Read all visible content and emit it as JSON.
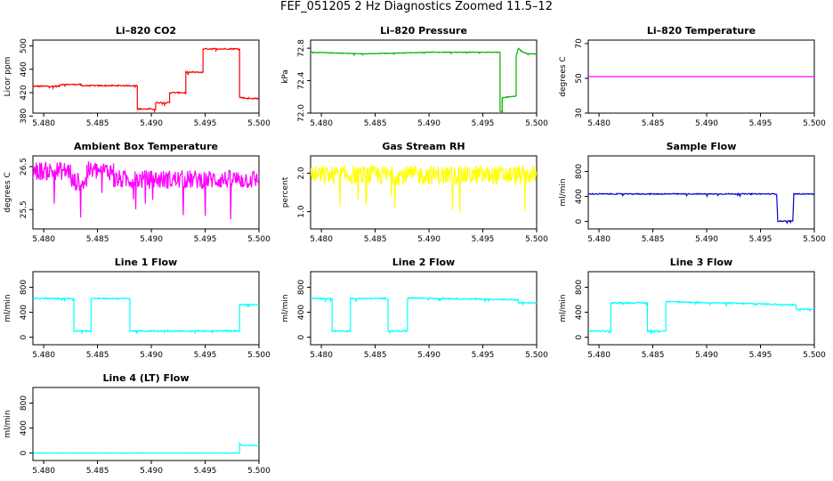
{
  "figure": {
    "title": "FEF_051205  2 Hz Diagnostics Zoomed 11.5–12"
  },
  "chart_data": [
    {
      "type": "line",
      "title": "Li–820 CO2",
      "xlabel": "",
      "ylabel": "Licor ppm",
      "xlim": [
        5.479,
        5.5
      ],
      "ylim": [
        385,
        510
      ],
      "xticks": [
        5.48,
        5.485,
        5.49,
        5.495,
        5.5
      ],
      "xtick_labels": [
        "5.480",
        "5.485",
        "5.490",
        "5.495",
        "5.500"
      ],
      "yticks": [
        380,
        420,
        460,
        500
      ],
      "color": "#ff0000",
      "noise": 1.0,
      "series": [
        {
          "x": [
            5.479,
            5.4815,
            5.4815,
            5.4835,
            5.4835,
            5.4887,
            5.4887,
            5.4904,
            5.4904,
            5.4917,
            5.4917,
            5.4932,
            5.4932,
            5.4948,
            5.4948,
            5.4982,
            5.4982,
            5.499,
            5.5
          ],
          "y": [
            431,
            431,
            434,
            434,
            432,
            432,
            392,
            392,
            403,
            403,
            420,
            420,
            455,
            455,
            495,
            495,
            412,
            410,
            410
          ]
        }
      ]
    },
    {
      "type": "line",
      "title": "Li–820 Pressure",
      "xlabel": "",
      "ylabel": "kPa",
      "xlim": [
        5.479,
        5.5
      ],
      "ylim": [
        72.0,
        72.9
      ],
      "xticks": [
        5.48,
        5.485,
        5.49,
        5.495,
        5.5
      ],
      "xtick_labels": [
        "5.480",
        "5.485",
        "5.490",
        "5.495",
        "5.500"
      ],
      "yticks": [
        72.0,
        72.4,
        72.8
      ],
      "ytick_labels": [
        "72.0",
        "72.4",
        "72.8"
      ],
      "color": "#00b000",
      "noise": 0.004,
      "series": [
        {
          "x": [
            5.479,
            5.484,
            5.49,
            5.4966,
            5.4966,
            5.4968,
            5.4968,
            5.4981,
            5.4981,
            5.4983,
            5.4986,
            5.4992,
            5.5
          ],
          "y": [
            72.75,
            72.73,
            72.75,
            72.75,
            72.02,
            72.02,
            72.19,
            72.21,
            72.7,
            72.8,
            72.76,
            72.73,
            72.73
          ]
        }
      ]
    },
    {
      "type": "line",
      "title": "Li–820 Temperature",
      "xlabel": "",
      "ylabel": "degrees C",
      "xlim": [
        5.479,
        5.5
      ],
      "ylim": [
        30,
        72
      ],
      "xticks": [
        5.48,
        5.485,
        5.49,
        5.495,
        5.5
      ],
      "xtick_labels": [
        "5.480",
        "5.485",
        "5.490",
        "5.495",
        "5.500"
      ],
      "yticks": [
        30,
        50,
        70
      ],
      "color": "#ff00ff",
      "noise": 0,
      "series": [
        {
          "x": [
            5.479,
            5.5
          ],
          "y": [
            51,
            51
          ]
        }
      ]
    },
    {
      "type": "line",
      "title": "Ambient Box Temperature",
      "xlabel": "",
      "ylabel": "degrees C",
      "xlim": [
        5.479,
        5.5
      ],
      "ylim": [
        25.05,
        26.75
      ],
      "xticks": [
        5.48,
        5.485,
        5.49,
        5.495,
        5.5
      ],
      "xtick_labels": [
        "5.480",
        "5.485",
        "5.490",
        "5.495",
        "5.500"
      ],
      "yticks": [
        25.5,
        26.5
      ],
      "ytick_labels": [
        "25.5",
        "26.5"
      ],
      "color": "#ff00ff",
      "noise": 0.22,
      "series": [
        {
          "x": [
            5.479,
            5.4825,
            5.4825,
            5.484,
            5.484,
            5.4865,
            5.4865,
            5.5
          ],
          "y": [
            26.4,
            26.4,
            26.15,
            26.15,
            26.4,
            26.4,
            26.2,
            26.2
          ]
        }
      ]
    },
    {
      "type": "line",
      "title": "Gas Stream RH",
      "xlabel": "",
      "ylabel": "percent",
      "xlim": [
        5.479,
        5.5
      ],
      "ylim": [
        0.55,
        2.45
      ],
      "xticks": [
        5.48,
        5.485,
        5.49,
        5.495,
        5.5
      ],
      "xtick_labels": [
        "5.480",
        "5.485",
        "5.490",
        "5.495",
        "5.500"
      ],
      "yticks": [
        1.0,
        2.0
      ],
      "ytick_labels": [
        "1.0",
        "2.0"
      ],
      "color": "#ffff00",
      "noise": 0.25,
      "series": [
        {
          "x": [
            5.479,
            5.5
          ],
          "y": [
            1.95,
            1.95
          ]
        }
      ]
    },
    {
      "type": "line",
      "title": "Sample Flow",
      "xlabel": "",
      "ylabel": "ml/min",
      "xlim": [
        5.479,
        5.5
      ],
      "ylim": [
        -120,
        1050
      ],
      "xticks": [
        5.48,
        5.485,
        5.49,
        5.495,
        5.5
      ],
      "xtick_labels": [
        "5.480",
        "5.485",
        "5.490",
        "5.495",
        "5.500"
      ],
      "yticks": [
        0,
        400,
        800
      ],
      "color": "#0000cc",
      "noise": 8,
      "series": [
        {
          "x": [
            5.479,
            5.4965,
            5.4966,
            5.498,
            5.4981,
            5.5
          ],
          "y": [
            440,
            440,
            5,
            5,
            440,
            440
          ]
        }
      ]
    },
    {
      "type": "line",
      "title": "Line 1 Flow",
      "xlabel": "",
      "ylabel": "ml/min",
      "xlim": [
        5.479,
        5.5
      ],
      "ylim": [
        -120,
        1050
      ],
      "xticks": [
        5.48,
        5.485,
        5.49,
        5.495,
        5.5
      ],
      "xtick_labels": [
        "5.480",
        "5.485",
        "5.490",
        "5.495",
        "5.500"
      ],
      "yticks": [
        0,
        400,
        800
      ],
      "color": "#00ffff",
      "noise": 10,
      "series": [
        {
          "x": [
            5.479,
            5.4828,
            5.4828,
            5.4844,
            5.4844,
            5.488,
            5.488,
            5.4982,
            5.4982,
            5.5
          ],
          "y": [
            620,
            620,
            100,
            100,
            620,
            620,
            100,
            100,
            520,
            520
          ]
        }
      ]
    },
    {
      "type": "line",
      "title": "Line 2 Flow",
      "xlabel": "",
      "ylabel": "ml/min",
      "xlim": [
        5.479,
        5.5
      ],
      "ylim": [
        -120,
        1050
      ],
      "xticks": [
        5.48,
        5.485,
        5.49,
        5.495,
        5.5
      ],
      "xtick_labels": [
        "5.480",
        "5.485",
        "5.490",
        "5.495",
        "5.500"
      ],
      "yticks": [
        0,
        400,
        800
      ],
      "color": "#00ffff",
      "noise": 10,
      "series": [
        {
          "x": [
            5.479,
            5.481,
            5.481,
            5.4827,
            5.4827,
            5.4862,
            5.4862,
            5.488,
            5.488,
            5.4983,
            5.4983,
            5.5
          ],
          "y": [
            620,
            620,
            100,
            100,
            620,
            620,
            100,
            100,
            630,
            600,
            550,
            550
          ]
        }
      ]
    },
    {
      "type": "line",
      "title": "Line 3 Flow",
      "xlabel": "",
      "ylabel": "ml/min",
      "xlim": [
        5.479,
        5.5
      ],
      "ylim": [
        -120,
        1050
      ],
      "xticks": [
        5.48,
        5.485,
        5.49,
        5.495,
        5.5
      ],
      "xtick_labels": [
        "5.480",
        "5.485",
        "5.490",
        "5.495",
        "5.500"
      ],
      "yticks": [
        0,
        400,
        800
      ],
      "color": "#00ffff",
      "noise": 10,
      "series": [
        {
          "x": [
            5.479,
            5.4811,
            5.4811,
            5.4845,
            5.4845,
            5.4862,
            5.4862,
            5.4983,
            5.4983,
            5.5
          ],
          "y": [
            100,
            100,
            550,
            550,
            100,
            100,
            570,
            520,
            450,
            450
          ]
        }
      ]
    },
    {
      "type": "line",
      "title": "Line 4 (LT) Flow",
      "xlabel": "",
      "ylabel": "ml/min",
      "xlim": [
        5.479,
        5.5
      ],
      "ylim": [
        -120,
        1050
      ],
      "xticks": [
        5.48,
        5.485,
        5.49,
        5.495,
        5.5
      ],
      "xtick_labels": [
        "5.480",
        "5.485",
        "5.490",
        "5.495",
        "5.500"
      ],
      "yticks": [
        0,
        400,
        800
      ],
      "color": "#00ffff",
      "noise": 2,
      "series": [
        {
          "x": [
            5.479,
            5.4982,
            5.4982,
            5.4984,
            5.5
          ],
          "y": [
            0,
            0,
            160,
            120,
            120
          ]
        }
      ]
    }
  ]
}
